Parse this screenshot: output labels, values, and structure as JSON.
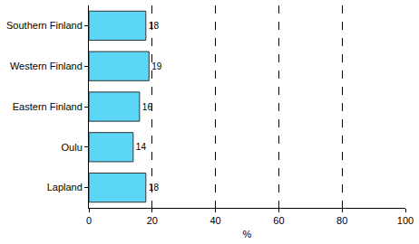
{
  "chart_data": {
    "type": "bar",
    "orientation": "horizontal",
    "categories": [
      "Southern Finland",
      "Western Finland",
      "Eastern Finland",
      "Oulu",
      "Lapland"
    ],
    "values": [
      18,
      19,
      16,
      14,
      18
    ],
    "color": "#5cd6f7",
    "xlabel": "%",
    "xlim": [
      0,
      100
    ],
    "xticks": [
      0,
      20,
      40,
      60,
      80,
      100
    ],
    "grid": true,
    "data_labels": true
  }
}
